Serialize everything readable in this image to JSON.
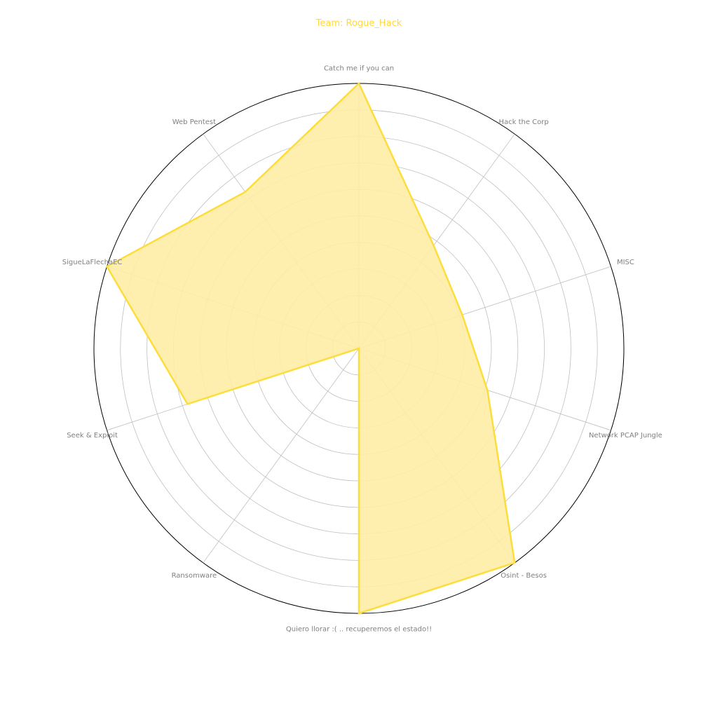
{
  "chart_data": {
    "type": "radar",
    "title": "Team: Rogue_Hack",
    "categories": [
      "Catch me if you can",
      "Hack the Corp",
      "MISC",
      "Network PCAP Jungle",
      "Osint - Besos",
      "Quiero llorar :( .. recuperemos el estado!!",
      "Ransomware",
      "Seek & Exploit",
      "SigueLaFlechaEC",
      "Web Pentest"
    ],
    "series": [
      {
        "values": [
          10,
          4.8,
          4.1,
          5.1,
          10,
          10,
          0,
          6.8,
          10,
          7.3
        ]
      }
    ],
    "rlim": [
      0,
      10
    ],
    "rings": [
      1,
      2,
      3,
      4,
      5,
      6,
      7,
      8,
      9,
      10
    ],
    "grid": true,
    "colors": {
      "title": "#FFD93D",
      "line": "#FDDD3B",
      "fill": "#FFEDA6",
      "grid": "#BFBFBF",
      "outer": "#000000",
      "label": "#808080"
    }
  }
}
